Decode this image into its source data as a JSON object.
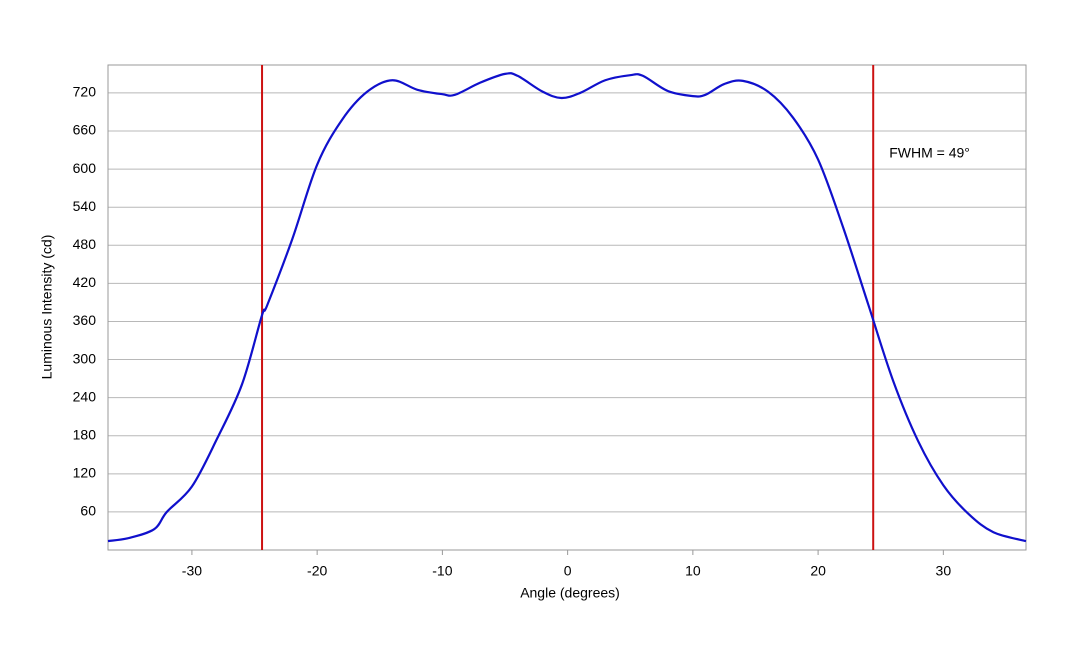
{
  "chart_data": {
    "type": "line",
    "x_label": "Angle (degrees)",
    "y_label": "Luminous Intensity (cd)",
    "xlim": [
      -36.7,
      36.6
    ],
    "ylim": [
      0,
      764
    ],
    "xticks": [
      -30,
      -20,
      -10,
      0,
      10,
      20,
      30
    ],
    "yticks": [
      60,
      120,
      180,
      240,
      300,
      360,
      420,
      480,
      540,
      600,
      660,
      720
    ],
    "grid": true,
    "series": [
      {
        "color": "#1010cc",
        "x": [
          -36.7,
          -35,
          -33,
          -32,
          -30,
          -28,
          -26,
          -24.4,
          -24,
          -22,
          -20,
          -18,
          -16,
          -14,
          -12,
          -10,
          -9,
          -7,
          -5,
          -4,
          -2,
          -0.5,
          1,
          3,
          5,
          6,
          8,
          10,
          11,
          12.5,
          14,
          16,
          18,
          20,
          22,
          24,
          26,
          28,
          30,
          32,
          34,
          36.6
        ],
        "values": [
          14,
          19,
          33,
          60,
          100,
          175,
          261,
          370,
          385,
          489,
          607,
          678,
          722,
          740,
          725,
          718,
          717,
          736,
          750,
          747,
          722,
          712,
          720,
          740,
          748,
          747,
          723,
          715,
          717,
          734,
          739,
          722,
          681,
          615,
          508,
          387,
          266,
          171,
          102,
          57,
          28,
          14
        ]
      }
    ],
    "vlines": {
      "color": "#cc1111",
      "x": [
        -24.4,
        24.4
      ]
    },
    "annotation": "FWHM = 49°"
  }
}
